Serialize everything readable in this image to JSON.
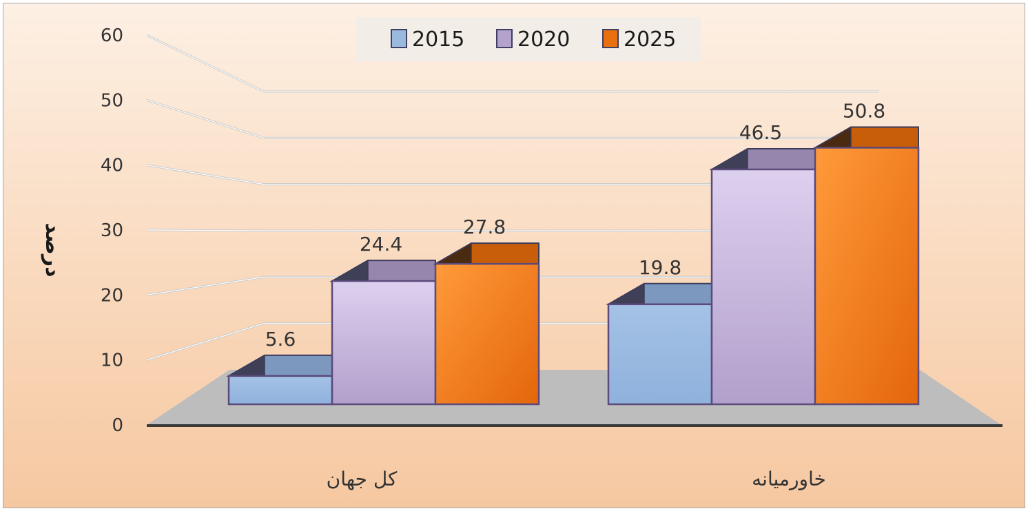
{
  "chart_data": {
    "type": "bar",
    "title": "",
    "xlabel": "",
    "ylabel": "درصد",
    "ylim": [
      0,
      60
    ],
    "yticks": [
      "0",
      "10",
      "20",
      "30",
      "40",
      "50",
      "60"
    ],
    "categories": [
      "کل جهان",
      "خاورمیانه"
    ],
    "series": [
      {
        "name": "2015",
        "values": [
          5.6,
          19.8
        ],
        "color": "#9ab9de"
      },
      {
        "name": "2020",
        "values": [
          24.4,
          46.5
        ],
        "color": "#b4a1cc"
      },
      {
        "name": "2025",
        "values": [
          27.8,
          50.8
        ],
        "color": "#e8700f"
      }
    ],
    "data_labels": [
      [
        "5.6",
        "19.8"
      ],
      [
        "24.4",
        "46.5"
      ],
      [
        "27.8",
        "50.8"
      ]
    ],
    "legend": "top",
    "grid": true,
    "style": "3d-clustered-column"
  }
}
